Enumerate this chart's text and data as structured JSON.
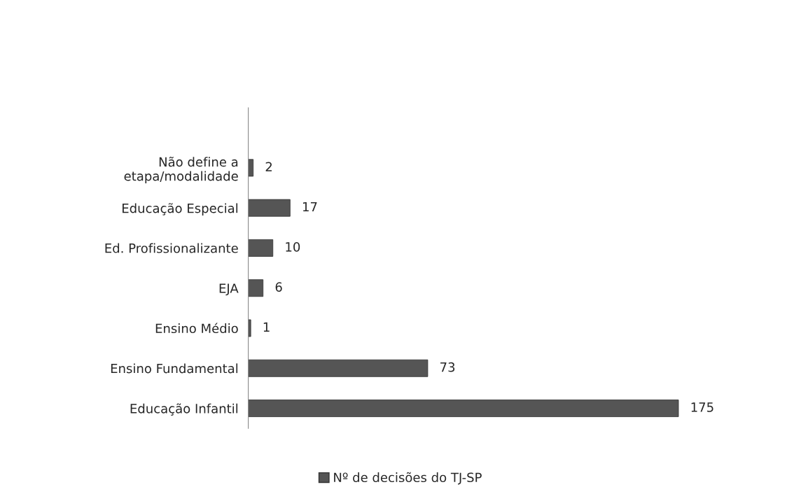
{
  "chart_data": {
    "type": "bar",
    "orientation": "horizontal",
    "categories": [
      null,
      "Não define a\netapa/modalidade",
      "Educação Especial",
      "Ed. Profissionalizante",
      "EJA",
      "Ensino Médio",
      "Ensino Fundamental",
      "Educação Infantil"
    ],
    "series": [
      {
        "name": "Nº de decisões do TJ-SP",
        "color": "#555555",
        "values": [
          null,
          2,
          17,
          10,
          6,
          1,
          73,
          175
        ]
      }
    ],
    "data_labels": true,
    "legend": "bottom",
    "grid": false
  }
}
